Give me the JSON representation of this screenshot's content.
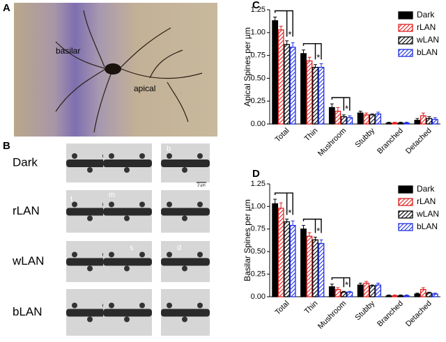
{
  "figure": {
    "panel_labels": [
      "A",
      "B"
    ],
    "panel_a": {
      "labels": [
        "basilar",
        "apical"
      ]
    },
    "panel_b": {
      "rows": [
        "Dark",
        "rLAN",
        "wLAN",
        "bLAN"
      ],
      "spine_labels": [
        "b",
        "t",
        "m",
        "s",
        "d"
      ],
      "scale_bar": "2 µm"
    }
  },
  "chart_data": [
    {
      "type": "bar",
      "panel_label": "C",
      "y_label": "Apical Spines per µm",
      "categories": [
        "Total",
        "Thin",
        "Mushroom",
        "Stubby",
        "Branched",
        "Detached"
      ],
      "ylim": [
        0,
        1.25
      ],
      "yticks": [
        {
          "value": 0,
          "label": "0.00"
        },
        0.25,
        {
          "value": 0.5,
          "label": "0.50"
        },
        0.75,
        {
          "value": 1,
          "label": "1.00"
        },
        1.25
      ],
      "legend": "top-right",
      "annotations": [
        "*",
        "*",
        "*"
      ],
      "series": [
        {
          "name": "Dark",
          "color": "#000000",
          "hatch": false,
          "values": [
            1.13,
            0.77,
            0.18,
            0.12,
            0.01,
            0.04
          ],
          "errors": [
            0.04,
            0.04,
            0.04,
            0.02,
            0.01,
            0.02
          ]
        },
        {
          "name": "rLAN",
          "color": "#e02020",
          "hatch": true,
          "values": [
            1.03,
            0.69,
            0.14,
            0.1,
            0.01,
            0.09
          ],
          "errors": [
            0.04,
            0.04,
            0.04,
            0.02,
            0.01,
            0.03
          ]
        },
        {
          "name": "wLAN",
          "color": "#000000",
          "hatch": true,
          "values": [
            0.87,
            0.62,
            0.08,
            0.1,
            0.01,
            0.06
          ],
          "errors": [
            0.04,
            0.03,
            0.02,
            0.01,
            0.01,
            0.02
          ]
        },
        {
          "name": "bLAN",
          "color": "#2030e0",
          "hatch": true,
          "values": [
            0.84,
            0.62,
            0.07,
            0.11,
            0.01,
            0.05
          ],
          "errors": [
            0.05,
            0.04,
            0.02,
            0.02,
            0.01,
            0.02
          ]
        }
      ]
    },
    {
      "type": "bar",
      "panel_label": "D",
      "y_label": "Basilar Spines per µm",
      "categories": [
        "Total",
        "Thin",
        "Mushroom",
        "Stubby",
        "Branched",
        "Detached"
      ],
      "ylim": [
        0,
        1.25
      ],
      "yticks": [
        {
          "value": 0,
          "label": "0.00"
        },
        0.25,
        {
          "value": 0.5,
          "label": "0.50"
        },
        0.75,
        {
          "value": 1,
          "label": "1.00"
        },
        1.25
      ],
      "legend": "top-right",
      "annotations": [
        "*",
        "*",
        "*"
      ],
      "series": [
        {
          "name": "Dark",
          "color": "#000000",
          "hatch": false,
          "values": [
            1.03,
            0.75,
            0.11,
            0.13,
            0.01,
            0.03
          ],
          "errors": [
            0.05,
            0.04,
            0.03,
            0.02,
            0.01,
            0.01
          ]
        },
        {
          "name": "rLAN",
          "color": "#e02020",
          "hatch": true,
          "values": [
            0.98,
            0.67,
            0.08,
            0.15,
            0.01,
            0.08
          ],
          "errors": [
            0.06,
            0.04,
            0.02,
            0.02,
            0.01,
            0.02
          ]
        },
        {
          "name": "wLAN",
          "color": "#000000",
          "hatch": true,
          "values": [
            0.83,
            0.63,
            0.05,
            0.12,
            0.01,
            0.04
          ],
          "errors": [
            0.03,
            0.03,
            0.01,
            0.01,
            0.01,
            0.01
          ]
        },
        {
          "name": "bLAN",
          "color": "#2030e0",
          "hatch": true,
          "values": [
            0.79,
            0.59,
            0.05,
            0.13,
            0.01,
            0.03
          ],
          "errors": [
            0.05,
            0.04,
            0.01,
            0.02,
            0.01,
            0.01
          ]
        }
      ]
    }
  ]
}
